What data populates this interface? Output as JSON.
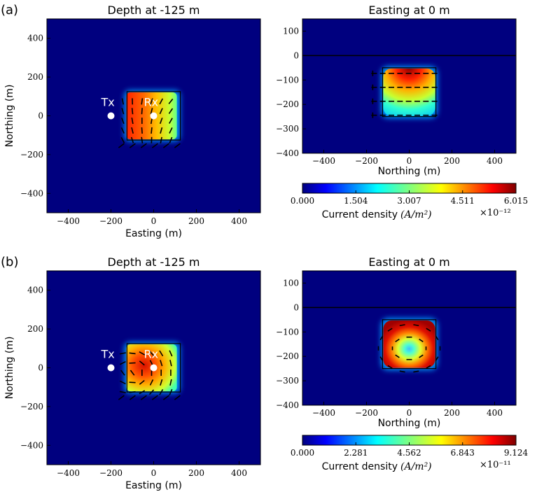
{
  "panels": [
    {
      "label": "(a)",
      "colorbar": {
        "ticks": [
          "0.000",
          "1.504",
          "3.007",
          "4.511",
          "6.015"
        ],
        "label_text": "Current density",
        "label_unit": "(A/m²)",
        "exponent": "×10⁻¹²",
        "vmax": 6.015e-12
      }
    },
    {
      "label": "(b)",
      "colorbar": {
        "ticks": [
          "0.000",
          "2.281",
          "4.562",
          "6.843",
          "9.124"
        ],
        "label_text": "Current density",
        "label_unit": "(A/m²)",
        "exponent": "×10⁻¹¹",
        "vmax": 9.124e-11
      }
    }
  ],
  "plan_view": {
    "title": "Depth at -125 m",
    "xlabel": "Easting (m)",
    "ylabel": "Northing (m)",
    "xticks": [
      "−400",
      "−200",
      "0",
      "200",
      "400"
    ],
    "yticks": [
      "400",
      "200",
      "0",
      "−200",
      "−400"
    ],
    "tx_label": "Tx",
    "rx_label": "Rx"
  },
  "section_view": {
    "title": "Easting at 0 m",
    "xlabel": "Northing (m)",
    "xticks": [
      "−400",
      "−200",
      "0",
      "200",
      "400"
    ],
    "yticks": [
      "100",
      "0",
      "−100",
      "−200",
      "−300",
      "−400"
    ]
  },
  "chart_data": [
    {
      "type": "heatmap",
      "panel": "(a)",
      "title": "Depth at -125 m",
      "xlabel": "Easting (m)",
      "ylabel": "Northing (m)",
      "xlim": [
        -500,
        500
      ],
      "ylim": [
        -500,
        500
      ],
      "block": {
        "x": [
          -125,
          125
        ],
        "y": [
          -125,
          125
        ]
      },
      "transmitter": [
        -200,
        0
      ],
      "receiver": [
        0,
        0
      ],
      "colormap": "jet",
      "color_range": [
        0,
        6.015e-12
      ]
    },
    {
      "type": "heatmap",
      "panel": "(a)",
      "title": "Easting at 0 m",
      "xlabel": "Northing (m)",
      "xlim": [
        -500,
        500
      ],
      "ylim": [
        -400,
        150
      ],
      "surface_z": 0,
      "block": {
        "x": [
          -125,
          125
        ],
        "z": [
          -250,
          -50
        ]
      },
      "colormap": "jet",
      "color_range": [
        0,
        6.015e-12
      ]
    },
    {
      "type": "heatmap",
      "panel": "(b)",
      "title": "Depth at -125 m",
      "xlabel": "Easting (m)",
      "ylabel": "Northing (m)",
      "xlim": [
        -500,
        500
      ],
      "ylim": [
        -500,
        500
      ],
      "block": {
        "x": [
          -125,
          125
        ],
        "y": [
          -125,
          125
        ]
      },
      "transmitter": [
        -200,
        0
      ],
      "receiver": [
        0,
        0
      ],
      "colormap": "jet",
      "color_range": [
        0,
        9.124e-11
      ]
    },
    {
      "type": "heatmap",
      "panel": "(b)",
      "title": "Easting at 0 m",
      "xlabel": "Northing (m)",
      "xlim": [
        -500,
        500
      ],
      "ylim": [
        -400,
        150
      ],
      "surface_z": 0,
      "block": {
        "x": [
          -125,
          125
        ],
        "z": [
          -250,
          -50
        ]
      },
      "colormap": "jet",
      "color_range": [
        0,
        9.124e-11
      ]
    }
  ],
  "colors": {
    "background_field": "#00007f",
    "surface_line": "#000000",
    "marker": "#ffffff"
  }
}
